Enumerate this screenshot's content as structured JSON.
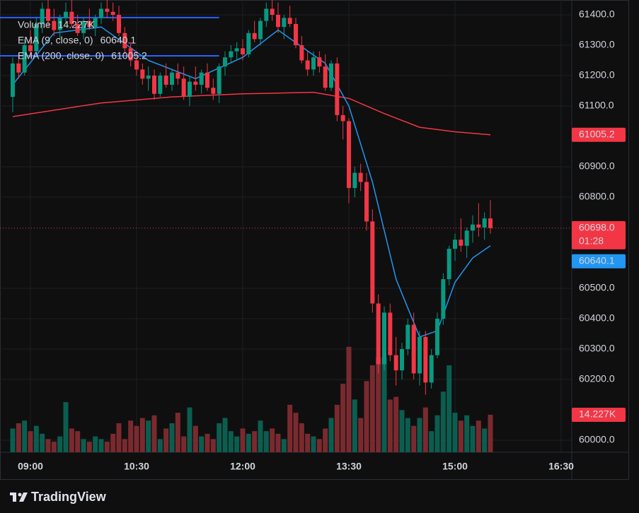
{
  "chart_data": {
    "type": "candlestick",
    "x": [
      525,
      530,
      535,
      540,
      545,
      550,
      555,
      560,
      565,
      570,
      575,
      580,
      585,
      590,
      595,
      600,
      605,
      610,
      615,
      620,
      625,
      630,
      635,
      640,
      645,
      650,
      655,
      660,
      665,
      670,
      675,
      680,
      685,
      690,
      695,
      700,
      705,
      710,
      715,
      720,
      725,
      730,
      735,
      740,
      745,
      750,
      755,
      760,
      765,
      770,
      775,
      780,
      785,
      790,
      795,
      800,
      805,
      810,
      815,
      820,
      825,
      830,
      835,
      840,
      845,
      850,
      855,
      860,
      865,
      870,
      875,
      880,
      885,
      890,
      895,
      900,
      905,
      910,
      915,
      920,
      925,
      930
    ],
    "open": [
      61130,
      61240,
      61210,
      61300,
      61280,
      61370,
      61420,
      61380,
      61350,
      61390,
      61410,
      61370,
      61340,
      61380,
      61360,
      61390,
      61420,
      61410,
      61400,
      61340,
      61290,
      61250,
      61220,
      61190,
      61200,
      61140,
      61200,
      61170,
      61210,
      61190,
      61130,
      61180,
      61170,
      61210,
      61160,
      61140,
      61230,
      61260,
      61280,
      61290,
      61270,
      61340,
      61320,
      61380,
      61420,
      61400,
      61360,
      61390,
      61370,
      61300,
      61250,
      61220,
      61260,
      61230,
      61160,
      61240,
      61070,
      61050,
      60830,
      60880,
      60850,
      60720,
      60450,
      60250,
      60420,
      60280,
      60230,
      60300,
      60380,
      60220,
      60340,
      60190,
      60280,
      60400,
      60530,
      60630,
      60660,
      60640,
      60690,
      60710,
      60700,
      60730
    ],
    "high": [
      61260,
      61270,
      61320,
      61350,
      61390,
      61440,
      61450,
      61420,
      61400,
      61440,
      61450,
      61400,
      61390,
      61420,
      61400,
      61440,
      61450,
      61440,
      61430,
      61360,
      61310,
      61280,
      61240,
      61230,
      61220,
      61210,
      61240,
      61220,
      61240,
      61230,
      61200,
      61230,
      61220,
      61240,
      61190,
      61240,
      61280,
      61300,
      61310,
      61320,
      61350,
      61380,
      61390,
      61440,
      61450,
      61440,
      61400,
      61430,
      61390,
      61330,
      61280,
      61280,
      61280,
      61270,
      61250,
      61260,
      61100,
      61060,
      60900,
      60910,
      60880,
      60760,
      60480,
      60440,
      60450,
      60340,
      60320,
      60400,
      60420,
      60360,
      60360,
      60300,
      60420,
      60550,
      60640,
      60680,
      60730,
      60700,
      60740,
      60780,
      60750,
      60790
    ],
    "low": [
      61080,
      61190,
      61200,
      61260,
      61270,
      61340,
      61360,
      61330,
      61320,
      61370,
      61360,
      61330,
      61320,
      61350,
      61330,
      61370,
      61390,
      61380,
      61330,
      61270,
      61230,
      61200,
      61170,
      61150,
      61120,
      61130,
      61160,
      61150,
      61170,
      61120,
      61100,
      61150,
      61140,
      61150,
      61120,
      61110,
      61200,
      61240,
      61250,
      61250,
      61260,
      61310,
      61300,
      61360,
      61380,
      61340,
      61320,
      61360,
      61290,
      61240,
      61200,
      61200,
      61210,
      61150,
      61150,
      61050,
      60990,
      60780,
      60800,
      60820,
      60690,
      60420,
      60220,
      60230,
      60260,
      60180,
      60200,
      60280,
      60200,
      60180,
      60150,
      60170,
      60270,
      60380,
      60510,
      60590,
      60620,
      60600,
      60650,
      60670,
      60660,
      60680
    ],
    "close": [
      61240,
      61210,
      61300,
      61280,
      61370,
      61420,
      61380,
      61350,
      61390,
      61410,
      61370,
      61340,
      61380,
      61360,
      61390,
      61420,
      61410,
      61400,
      61340,
      61290,
      61250,
      61220,
      61190,
      61200,
      61140,
      61200,
      61170,
      61210,
      61190,
      61130,
      61180,
      61170,
      61210,
      61160,
      61140,
      61230,
      61260,
      61280,
      61290,
      61270,
      61340,
      61320,
      61380,
      61420,
      61400,
      61360,
      61390,
      61370,
      61300,
      61250,
      61220,
      61260,
      61230,
      61160,
      61240,
      61070,
      61050,
      60830,
      60880,
      60850,
      60720,
      60450,
      60250,
      60420,
      60280,
      60230,
      60300,
      60380,
      60220,
      60340,
      60190,
      60280,
      60400,
      60530,
      60630,
      60660,
      60640,
      60690,
      60710,
      60700,
      60730,
      60698
    ],
    "volume": [
      9000,
      11000,
      12000,
      8000,
      10000,
      7000,
      5000,
      4000,
      6000,
      19000,
      9000,
      8000,
      5000,
      4000,
      6000,
      5000,
      4000,
      7000,
      11000,
      5000,
      12000,
      10000,
      13000,
      12000,
      14000,
      5000,
      9000,
      11000,
      15000,
      6000,
      17000,
      10000,
      6000,
      7000,
      5000,
      11000,
      13000,
      8000,
      6000,
      9000,
      7000,
      8000,
      12000,
      8000,
      9000,
      7000,
      5000,
      18000,
      15000,
      11000,
      7000,
      6000,
      5000,
      9000,
      13000,
      18000,
      26000,
      40000,
      20000,
      13000,
      27000,
      33000,
      36000,
      36000,
      20000,
      21000,
      16000,
      13000,
      10000,
      13000,
      17000,
      8000,
      14000,
      23000,
      33000,
      15000,
      12000,
      14000,
      10000,
      12000,
      9000,
      14227
    ],
    "volume_value_label": "14.227K",
    "volume_name": "Volume",
    "up_color": "#089981",
    "down_color": "#f23645",
    "up_volume_color": "#0b5e4f",
    "down_volume_color": "#7a2a2f",
    "last_price_label": "60698.0",
    "countdown": "01:28",
    "studies": [
      {
        "name": "EMA (9, close, 0)",
        "color": "#2196f3",
        "x": [
          525,
          560,
          600,
          640,
          680,
          720,
          750,
          790,
          810,
          830,
          850,
          870,
          885,
          900,
          915,
          930
        ],
        "values": [
          61170,
          61340,
          61360,
          61250,
          61190,
          61260,
          61350,
          61240,
          61100,
          60850,
          60530,
          60340,
          60360,
          60520,
          60600,
          60640.1
        ]
      },
      {
        "name": "EMA (200, close, 0)",
        "color": "#f23645",
        "x": [
          525,
          600,
          660,
          720,
          780,
          810,
          840,
          870,
          900,
          930
        ],
        "values": [
          61065,
          61110,
          61130,
          61140,
          61145,
          61125,
          61075,
          61030,
          61015,
          61005.2
        ]
      }
    ],
    "horizontal_lines": [
      {
        "price": 61391,
        "x_end": 700,
        "color": "#2962ff"
      },
      {
        "price": 61265,
        "x_end": 700,
        "color": "#2962ff"
      }
    ],
    "xlim": [
      522.6,
      999
    ],
    "xticks": [
      {
        "value": 540,
        "label": "09:00"
      },
      {
        "value": 630,
        "label": "10:30"
      },
      {
        "value": 720,
        "label": "12:00"
      },
      {
        "value": 810,
        "label": "13:30"
      },
      {
        "value": 900,
        "label": "15:00"
      },
      {
        "value": 990,
        "label": "16:30"
      }
    ],
    "ylim": [
      59960.5,
      61448.8
    ],
    "yticks": [
      {
        "value": 60000,
        "label": "60000.0"
      },
      {
        "value": 60200,
        "label": "60200.0"
      },
      {
        "value": 60300,
        "label": "60300.0"
      },
      {
        "value": 60400,
        "label": "60400.0"
      },
      {
        "value": 60500,
        "label": "60500.0"
      },
      {
        "value": 60800,
        "label": "60800.0"
      },
      {
        "value": 60900,
        "label": "60900.0"
      },
      {
        "value": 61100,
        "label": "61100.0"
      },
      {
        "value": 61200,
        "label": "61200.0"
      },
      {
        "value": 61300,
        "label": "61300.0"
      },
      {
        "value": 61400,
        "label": "61400.0"
      }
    ],
    "volume_lim": [
      0,
      171600
    ],
    "grid": true
  },
  "branding": "TradingView"
}
